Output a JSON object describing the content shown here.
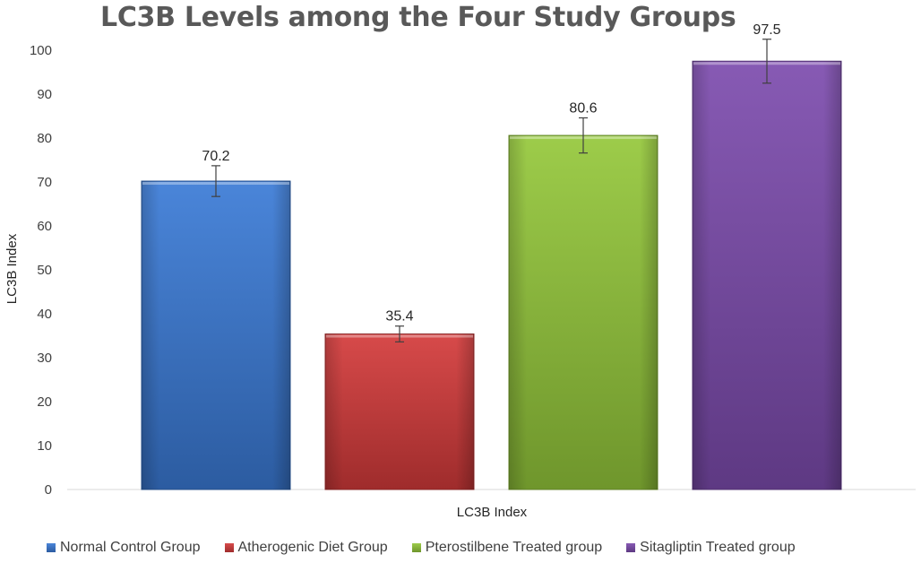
{
  "chart_data": {
    "type": "bar",
    "title": "LC3B Levels among the Four Study Groups",
    "xlabel": "LC3B Index",
    "ylabel": "LC3B Index",
    "ylim": [
      0,
      100
    ],
    "yticks": [
      0,
      10,
      20,
      30,
      40,
      50,
      60,
      70,
      80,
      90,
      100
    ],
    "grid": false,
    "legend_position": "bottom",
    "series": [
      {
        "name": "Normal Control Group",
        "values": [
          70.2
        ],
        "error": [
          3.5
        ],
        "label": "70.2",
        "color": "#3a7ad6"
      },
      {
        "name": "Atherogenic Diet Group",
        "values": [
          35.4
        ],
        "error": [
          1.8
        ],
        "label": "35.4",
        "color": "#d43a3a"
      },
      {
        "name": "Pterostilbene Treated group",
        "values": [
          80.6
        ],
        "error": [
          4.0
        ],
        "label": "80.6",
        "color": "#94c83a"
      },
      {
        "name": "Sitagliptin Treated group",
        "values": [
          97.5
        ],
        "error": [
          5.0
        ],
        "label": "97.5",
        "color": "#7d4cae"
      }
    ]
  }
}
